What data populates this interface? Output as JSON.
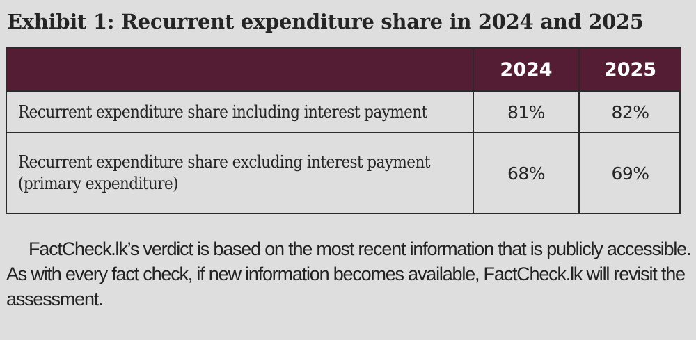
{
  "exhibit": {
    "title": "Exhibit 1: Recurrent expenditure share in 2024 and 2025",
    "header_color": "#541d34",
    "table": {
      "columns": [
        "",
        "2024",
        "2025"
      ],
      "rows": [
        {
          "label": "Recurrent expenditure share including interest payment",
          "values": [
            "81%",
            "82%"
          ]
        },
        {
          "label": "Recurrent expenditure share excluding interest payment (primary expenditure)",
          "values": [
            "68%",
            "69%"
          ]
        }
      ]
    }
  },
  "note": {
    "text": "FactCheck.lk’s verdict is based on the most recent information that is publicly accessible. As with every fact check, if new information becomes available, FactCheck.lk will revisit the assessment."
  }
}
